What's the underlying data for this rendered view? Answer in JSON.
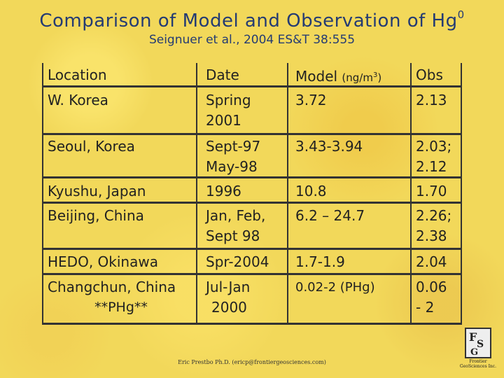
{
  "slide": {
    "title": "Comparison of Model and Observation of Hg",
    "title_superscript": "0",
    "subtitle": "Seignuer et al., 2004 ES&T 38:555"
  },
  "table": {
    "headers": {
      "location": "Location",
      "date": "Date",
      "model": "Model",
      "model_unit": "(ng/m",
      "model_unit_sup": "3",
      "model_unit_close": ")",
      "obs": "Obs"
    },
    "rows": [
      {
        "location": [
          "W. Korea"
        ],
        "date": [
          "Spring",
          "2001"
        ],
        "model": [
          "3.72"
        ],
        "obs": [
          "2.13"
        ]
      },
      {
        "location": [
          "Seoul, Korea"
        ],
        "date": [
          "Sept-97",
          "May-98"
        ],
        "model": [
          "3.43-3.94"
        ],
        "obs": [
          "2.03;",
          "2.12"
        ]
      },
      {
        "location": [
          "Kyushu, Japan"
        ],
        "date": [
          "1996"
        ],
        "model": [
          "10.8"
        ],
        "obs": [
          "1.70"
        ]
      },
      {
        "location": [
          "Beijing, China"
        ],
        "date": [
          "Jan, Feb,",
          "Sept 98"
        ],
        "model": [
          "6.2 – 24.7"
        ],
        "obs": [
          "2.26;",
          "2.38"
        ]
      },
      {
        "location": [
          "HEDO, Okinawa"
        ],
        "date": [
          "Spr-2004"
        ],
        "model": [
          "1.7-1.9"
        ],
        "obs": [
          "2.04"
        ]
      },
      {
        "location": [
          "Changchun, China",
          "**PHg**"
        ],
        "date": [
          "Jul-Jan",
          "2000"
        ],
        "model": [
          "0.02-2 (PHg)"
        ],
        "obs": [
          "0.06",
          "- 2"
        ]
      }
    ]
  },
  "footer": "Eric Prestbo Ph.D. (ericp@frontiergeosciences.com)",
  "logo": {
    "letters": [
      "F",
      "S",
      "G"
    ],
    "caption": [
      "Frontier",
      "GeoSciences Inc."
    ]
  },
  "colors": {
    "title": "#243b73",
    "background": "#f2d85a",
    "rule": "#333333"
  }
}
